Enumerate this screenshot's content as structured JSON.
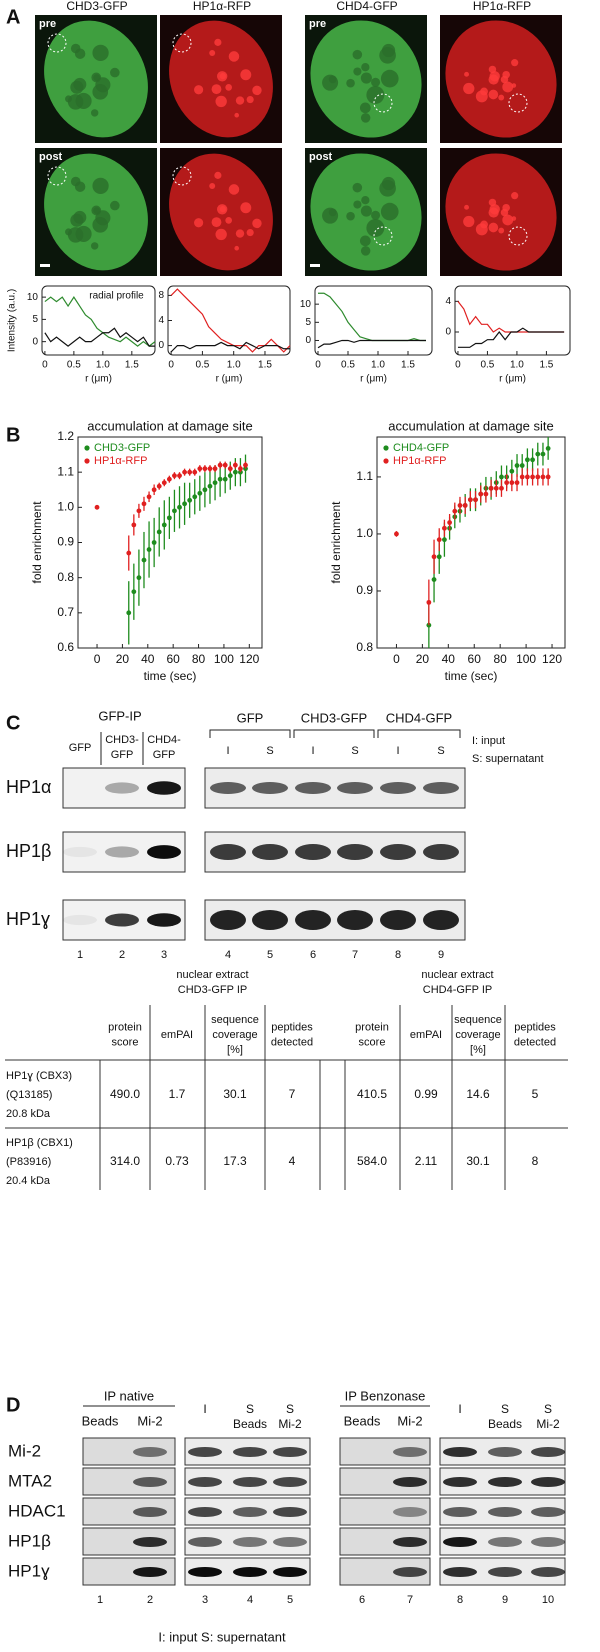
{
  "panel_a": {
    "label": "A",
    "image_titles": [
      "CHD3-GFP",
      "HP1α-RFP",
      "CHD4-GFP",
      "HP1α-RFP"
    ],
    "left_rows": [
      "pre",
      "post"
    ],
    "right_rows": [
      "pre",
      "post"
    ]
  },
  "panel_b": {
    "label": "B"
  },
  "chart_data": [
    {
      "type": "line",
      "annotation": "radial profile",
      "y_label": "Intensity (a.u.)",
      "x_label": "r (μm)",
      "xlim": [
        -0.05,
        1.9
      ],
      "ylim": [
        -3,
        12.5
      ],
      "xticks": [
        0,
        0.5,
        {
          "value": 1,
          "label": "1.0"
        },
        1.5
      ],
      "yticks": [
        0,
        5,
        10
      ],
      "x": [
        0,
        0.1,
        0.2,
        0.3,
        0.4,
        0.5,
        0.6,
        0.7,
        0.8,
        0.9,
        1.0,
        1.1,
        1.2,
        1.3,
        1.4,
        1.5,
        1.6,
        1.7,
        1.8,
        1.9
      ],
      "series": [
        {
          "color": "#2e8b2e",
          "values": [
            9,
            10,
            9,
            10,
            8,
            10,
            8,
            6,
            5,
            3,
            2,
            1,
            0.5,
            0,
            1,
            0,
            -1,
            0,
            -1,
            0
          ]
        },
        {
          "color": "#111111",
          "values": [
            2,
            0,
            1,
            0,
            -1,
            0,
            1,
            0,
            0,
            1,
            2,
            2,
            3,
            1,
            2,
            1,
            0,
            1,
            -1,
            -1
          ]
        }
      ]
    },
    {
      "type": "line",
      "x_label": "r (μm)",
      "xlim": [
        -0.05,
        1.9
      ],
      "ylim": [
        -1.5,
        9.5
      ],
      "xticks": [
        0,
        0.5,
        {
          "value": 1,
          "label": "1.0"
        },
        1.5
      ],
      "yticks": [
        0,
        4,
        8
      ],
      "x": [
        0,
        0.1,
        0.2,
        0.3,
        0.4,
        0.5,
        0.6,
        0.7,
        0.8,
        0.9,
        1.0,
        1.1,
        1.2,
        1.3,
        1.4,
        1.5,
        1.6,
        1.7,
        1.8,
        1.9
      ],
      "series": [
        {
          "color": "#e02020",
          "values": [
            8,
            9,
            8,
            7,
            6,
            5,
            3,
            2,
            1,
            0.5,
            0,
            0,
            0,
            -1,
            0,
            0,
            1,
            0,
            -1,
            0
          ]
        },
        {
          "color": "#111111",
          "values": [
            -1,
            0,
            0,
            -0.5,
            0,
            0,
            0,
            0,
            0.5,
            0,
            0,
            -0.5,
            0.5,
            0,
            -0.5,
            0,
            0,
            0,
            -0.5,
            -0.5
          ]
        }
      ]
    },
    {
      "type": "line",
      "x_label": "r (μm)",
      "xlim": [
        -0.05,
        1.9
      ],
      "ylim": [
        -4,
        15
      ],
      "xticks": [
        0,
        0.5,
        {
          "value": 1,
          "label": "1.0"
        },
        1.5
      ],
      "yticks": [
        0,
        5,
        10
      ],
      "x": [
        0,
        0.1,
        0.2,
        0.3,
        0.4,
        0.5,
        0.6,
        0.7,
        0.8,
        0.9,
        1.0,
        1.1,
        1.2,
        1.3,
        1.4,
        1.5,
        1.6,
        1.7,
        1.8
      ],
      "series": [
        {
          "color": "#2e8b2e",
          "values": [
            13,
            13,
            12,
            10,
            8,
            5,
            3,
            1,
            0.5,
            0,
            0,
            0,
            0,
            0,
            0,
            0,
            0.5,
            0,
            0
          ]
        },
        {
          "color": "#111111",
          "values": [
            -2,
            -1,
            -1,
            -0.5,
            0,
            0,
            -0.5,
            0,
            0,
            0,
            0,
            0,
            0,
            0,
            0,
            0,
            0,
            0,
            0
          ]
        }
      ]
    },
    {
      "type": "line",
      "x_label": "r (μm)",
      "xlim": [
        -0.05,
        1.9
      ],
      "ylim": [
        -3,
        6
      ],
      "xticks": [
        0,
        0.5,
        {
          "value": 1,
          "label": "1.0"
        },
        1.5
      ],
      "yticks": [
        0,
        4
      ],
      "x": [
        0,
        0.1,
        0.2,
        0.3,
        0.4,
        0.5,
        0.6,
        0.7,
        0.8,
        0.9,
        1.0,
        1.1,
        1.2,
        1.3,
        1.4,
        1.5,
        1.6,
        1.7,
        1.8
      ],
      "series": [
        {
          "color": "#e02020",
          "values": [
            4,
            3,
            1,
            2,
            1,
            1,
            0,
            0.5,
            0,
            0,
            0,
            0,
            0,
            0,
            0,
            0,
            0,
            0,
            0
          ]
        },
        {
          "color": "#111111",
          "values": [
            -2,
            -2,
            -2,
            -1.5,
            -1.5,
            -1,
            -1,
            0,
            -1,
            0,
            0,
            0.5,
            0,
            0,
            0,
            0,
            0,
            0,
            0
          ]
        }
      ]
    },
    {
      "type": "scatter",
      "title": "accumulation at damage site",
      "x_label": "time (sec)",
      "y_label": "fold enrichment",
      "xlim": [
        -15,
        130
      ],
      "ylim": [
        0.6,
        1.2
      ],
      "xticks": [
        0,
        20,
        40,
        60,
        80,
        100,
        120
      ],
      "yticks": [
        0.6,
        0.7,
        0.8,
        0.9,
        {
          "value": 1,
          "label": "1.0"
        },
        1.1,
        1.2
      ],
      "legend": "upper left",
      "series": [
        {
          "name": "CHD3-GFP",
          "color": "#1e8c1e",
          "x": [
            25,
            29,
            33,
            37,
            41,
            45,
            49,
            53,
            57,
            61,
            65,
            69,
            73,
            77,
            81,
            85,
            89,
            93,
            97,
            101,
            105,
            109,
            113,
            117
          ],
          "values": [
            0.7,
            0.76,
            0.8,
            0.85,
            0.88,
            0.9,
            0.93,
            0.95,
            0.97,
            0.99,
            1.0,
            1.01,
            1.02,
            1.03,
            1.04,
            1.05,
            1.06,
            1.07,
            1.08,
            1.08,
            1.09,
            1.1,
            1.1,
            1.11
          ],
          "errors": [
            0.09,
            0.08,
            0.08,
            0.08,
            0.08,
            0.07,
            0.07,
            0.07,
            0.06,
            0.06,
            0.06,
            0.06,
            0.05,
            0.05,
            0.05,
            0.05,
            0.05,
            0.05,
            0.05,
            0.04,
            0.04,
            0.04,
            0.04,
            0.04
          ]
        },
        {
          "name": "HP1α-RFP",
          "color": "#e02020",
          "x": [
            0,
            25,
            29,
            33,
            37,
            41,
            45,
            49,
            53,
            57,
            61,
            65,
            69,
            73,
            77,
            81,
            85,
            89,
            93,
            97,
            101,
            105,
            109,
            113,
            117
          ],
          "values": [
            1.0,
            0.87,
            0.95,
            0.99,
            1.01,
            1.03,
            1.05,
            1.06,
            1.07,
            1.08,
            1.09,
            1.09,
            1.1,
            1.1,
            1.1,
            1.11,
            1.11,
            1.11,
            1.11,
            1.12,
            1.12,
            1.11,
            1.12,
            1.11,
            1.12
          ],
          "errors": [
            0.005,
            0.05,
            0.03,
            0.02,
            0.02,
            0.015,
            0.015,
            0.01,
            0.01,
            0.01,
            0.01,
            0.01,
            0.01,
            0.01,
            0.01,
            0.01,
            0.01,
            0.01,
            0.01,
            0.01,
            0.01,
            0.01,
            0.01,
            0.01,
            0.01
          ]
        }
      ]
    },
    {
      "type": "scatter",
      "title": "accumulation at damage site",
      "x_label": "time (sec)",
      "y_label": "fold enrichment",
      "xlim": [
        -15,
        130
      ],
      "ylim": [
        0.8,
        1.17
      ],
      "xticks": [
        0,
        20,
        40,
        60,
        80,
        100,
        120
      ],
      "yticks": [
        0.8,
        0.9,
        {
          "value": 1,
          "label": "1.0"
        },
        1.1
      ],
      "legend": "upper left",
      "series": [
        {
          "name": "CHD4-GFP",
          "color": "#1e8c1e",
          "x": [
            25,
            29,
            33,
            37,
            41,
            45,
            49,
            53,
            57,
            61,
            65,
            69,
            73,
            77,
            81,
            85,
            89,
            93,
            97,
            101,
            105,
            109,
            113,
            117
          ],
          "values": [
            0.84,
            0.92,
            0.96,
            0.99,
            1.01,
            1.03,
            1.04,
            1.05,
            1.06,
            1.06,
            1.07,
            1.08,
            1.08,
            1.09,
            1.1,
            1.1,
            1.11,
            1.12,
            1.12,
            1.13,
            1.13,
            1.14,
            1.14,
            1.15
          ],
          "errors": [
            0.04,
            0.04,
            0.03,
            0.03,
            0.02,
            0.02,
            0.02,
            0.02,
            0.02,
            0.02,
            0.02,
            0.02,
            0.02,
            0.02,
            0.02,
            0.02,
            0.02,
            0.02,
            0.02,
            0.02,
            0.02,
            0.02,
            0.02,
            0.02
          ]
        },
        {
          "name": "HP1α-RFP",
          "color": "#e02020",
          "x": [
            0,
            25,
            29,
            33,
            37,
            41,
            45,
            49,
            53,
            57,
            61,
            65,
            69,
            73,
            77,
            81,
            85,
            89,
            93,
            97,
            101,
            105,
            109,
            113,
            117
          ],
          "values": [
            1.0,
            0.88,
            0.96,
            0.99,
            1.01,
            1.02,
            1.04,
            1.05,
            1.05,
            1.06,
            1.06,
            1.07,
            1.07,
            1.08,
            1.08,
            1.08,
            1.09,
            1.09,
            1.09,
            1.1,
            1.1,
            1.1,
            1.1,
            1.1,
            1.1
          ],
          "errors": [
            0.005,
            0.04,
            0.03,
            0.02,
            0.015,
            0.015,
            0.015,
            0.015,
            0.015,
            0.015,
            0.015,
            0.015,
            0.015,
            0.015,
            0.015,
            0.015,
            0.015,
            0.015,
            0.015,
            0.015,
            0.015,
            0.015,
            0.015,
            0.015,
            0.015
          ]
        }
      ]
    }
  ],
  "panel_c": {
    "label": "C",
    "ip_title": "GFP-IP",
    "ip_lanes": [
      [
        "GFP"
      ],
      [
        "CHD3-",
        "GFP"
      ],
      [
        "CHD4-",
        "GFP"
      ]
    ],
    "input_groups": [
      "GFP",
      "CHD3-GFP",
      "CHD4-GFP"
    ],
    "input_lanes": [
      "I",
      "S",
      "I",
      "S",
      "I",
      "S"
    ],
    "legend": [
      "I: input",
      "S: supernatant"
    ],
    "rows": [
      "HP1α",
      "HP1β",
      "HP1ɣ"
    ],
    "lane_numbers": [
      1,
      2,
      3,
      4,
      5,
      6,
      7,
      8,
      9
    ],
    "table": {
      "group_titles": [
        [
          "nuclear extract",
          "CHD3-GFP IP"
        ],
        [
          "nuclear extract",
          "CHD4-GFP IP"
        ]
      ],
      "headers": [
        [
          [
            "protein",
            "score"
          ],
          [
            "emPAI"
          ],
          [
            "sequence",
            "coverage",
            "[%]"
          ],
          [
            "peptides",
            "detected"
          ]
        ],
        [
          [
            "protein",
            "score"
          ],
          [
            "emPAI"
          ],
          [
            "sequence",
            "coverage",
            "[%]"
          ],
          [
            "peptides",
            "detected"
          ]
        ]
      ],
      "rows": [
        {
          "protein": [
            "HP1ɣ (CBX3)",
            "(Q13185)",
            "20.8 kDa"
          ],
          "values": [
            "490.0",
            "1.7",
            "30.1",
            "7",
            "410.5",
            "0.99",
            "14.6",
            "5"
          ]
        },
        {
          "protein": [
            "HP1β (CBX1)",
            "(P83916)",
            "20.4 kDa"
          ],
          "values": [
            "314.0",
            "0.73",
            "17.3",
            "4",
            "584.0",
            "2.11",
            "30.1",
            "8"
          ]
        }
      ]
    }
  },
  "panel_d": {
    "label": "D",
    "ip_groups": [
      {
        "title": "IP native",
        "lanes": [
          "Beads",
          "Mi-2"
        ]
      },
      {
        "title": "IP Benzonase",
        "lanes": [
          "Beads",
          "Mi-2"
        ]
      }
    ],
    "input_groups": [
      [
        [
          "I"
        ],
        [
          "S",
          "Beads"
        ],
        [
          "S",
          "Mi-2"
        ]
      ],
      [
        [
          "I"
        ],
        [
          "S",
          "Beads"
        ],
        [
          "S",
          "Mi-2"
        ]
      ]
    ],
    "rows": [
      "Mi-2",
      "MTA2",
      "HDAC1",
      "HP1β",
      "HP1ɣ"
    ],
    "lane_numbers": [
      1,
      2,
      3,
      4,
      5,
      6,
      7,
      8,
      9,
      10
    ],
    "footnote": "I: input  S: supernatant"
  }
}
